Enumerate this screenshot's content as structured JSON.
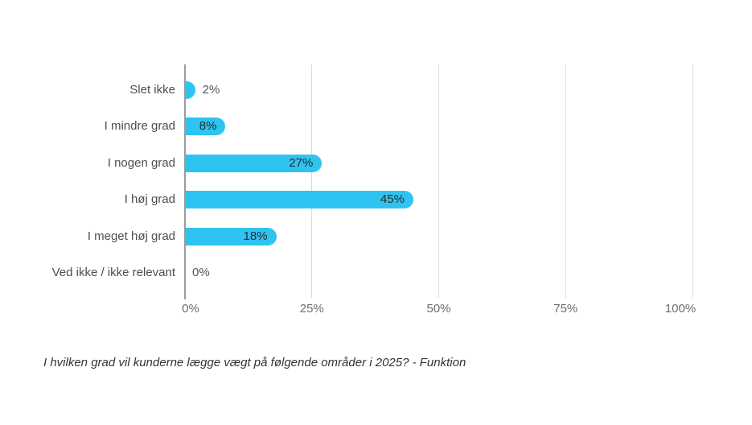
{
  "chart_data": {
    "type": "bar",
    "orientation": "horizontal",
    "title": "I hvilken grad vil kunderne lægge vægt på følgende områder i 2025? - Funktion",
    "categories": [
      "Slet ikke",
      "I mindre grad",
      "I nogen grad",
      "I høj grad",
      "I meget høj grad",
      "Ved ikke / ikke relevant"
    ],
    "values": [
      2,
      8,
      27,
      45,
      18,
      0
    ],
    "value_labels": [
      "2%",
      "8%",
      "27%",
      "45%",
      "18%",
      "0%"
    ],
    "xlabel": "",
    "ylabel": "",
    "xlim": [
      0,
      100
    ],
    "x_tick_values": [
      0,
      25,
      50,
      75,
      100
    ],
    "x_tick_labels": [
      "0%",
      "25%",
      "50%",
      "75%",
      "100%"
    ],
    "grid": "vertical",
    "legend": "none",
    "bar_color": "#2ec4f1"
  },
  "colors": {
    "background": "#ffffff",
    "bar": "#2ec4f1",
    "axis_line": "#9b9b9b",
    "gridline": "#d9d9d9",
    "category_label": "#4d4d4d",
    "value_label_inside": "#2b2b2b",
    "value_label_outside": "#565656",
    "tick_label": "#6b6b6b",
    "caption": "#333333"
  }
}
